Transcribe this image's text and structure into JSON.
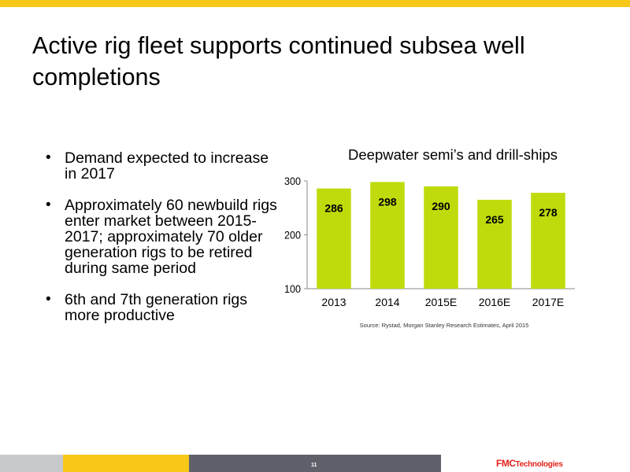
{
  "slide": {
    "title": "Active rig fleet supports continued subsea well completions",
    "bullets": [
      "Demand expected to increase in 2017",
      "Approximately 60 newbuild rigs enter market between 2015-2017; approximately 70 older generation rigs to be retired during same period",
      "6th and 7th generation rigs more productive"
    ],
    "bullet_glyph": "•",
    "source": "Source:   Rystad, Morgan Stanley Research Estimates, April 2015",
    "page_number": "11",
    "logo_main": "FMC",
    "logo_sub": "Technologies"
  },
  "colors": {
    "accent_yellow": "#f8c819",
    "bar_green": "#bfdb0b",
    "footer_gray": "#5e6169",
    "footer_light_gray": "#c7c9cd",
    "logo_red": "#e2231a"
  },
  "chart_data": {
    "type": "bar",
    "title": "Deepwater semi’s and drill-ships",
    "categories": [
      "2013",
      "2014",
      "2015E",
      "2016E",
      "2017E"
    ],
    "values": [
      286,
      298,
      290,
      265,
      278
    ],
    "ylim": [
      100,
      300
    ],
    "yticks": [
      100,
      200,
      300
    ],
    "grid": false,
    "legend": "none"
  }
}
